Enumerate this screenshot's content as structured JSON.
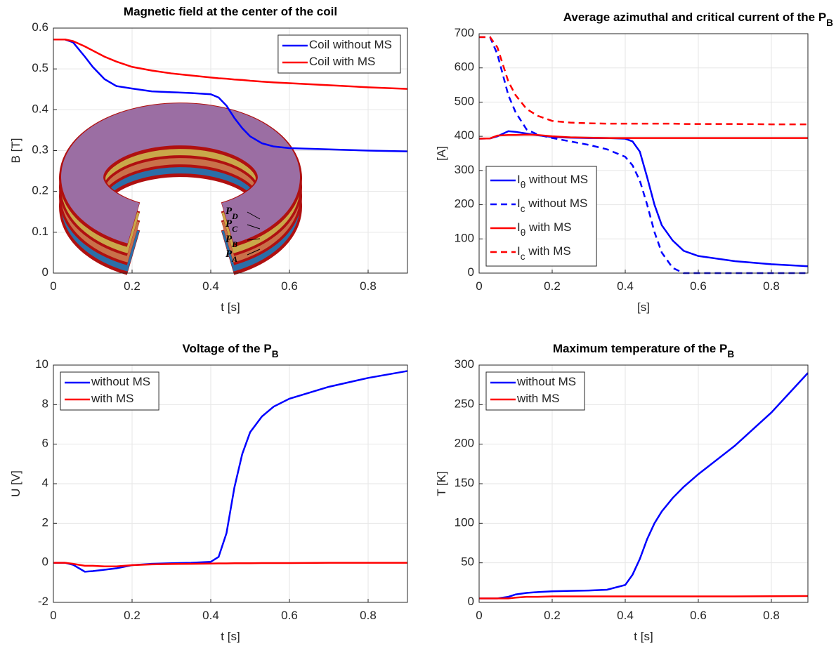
{
  "chart_data": [
    {
      "type": "line",
      "title": "Magnetic field at the center of the coil",
      "xlabel": "t [s]",
      "ylabel": "B [T]",
      "x": [
        0,
        0.03,
        0.05,
        0.08,
        0.1,
        0.13,
        0.16,
        0.2,
        0.25,
        0.3,
        0.35,
        0.4,
        0.42,
        0.44,
        0.46,
        0.48,
        0.5,
        0.53,
        0.56,
        0.6,
        0.7,
        0.8,
        0.9
      ],
      "series": [
        {
          "name": "Coil without MS",
          "color": "#0000ff",
          "linestyle": "solid",
          "values": [
            0.572,
            0.572,
            0.565,
            0.53,
            0.505,
            0.475,
            0.458,
            0.452,
            0.445,
            0.443,
            0.441,
            0.438,
            0.43,
            0.41,
            0.38,
            0.355,
            0.335,
            0.318,
            0.31,
            0.306,
            0.303,
            0.3,
            0.298
          ]
        },
        {
          "name": "Coil with MS",
          "color": "#ff0000",
          "linestyle": "solid",
          "values": [
            0.572,
            0.572,
            0.568,
            0.555,
            0.545,
            0.53,
            0.518,
            0.505,
            0.496,
            0.489,
            0.484,
            0.479,
            0.477,
            0.476,
            0.474,
            0.473,
            0.471,
            0.469,
            0.467,
            0.465,
            0.46,
            0.455,
            0.451
          ]
        }
      ],
      "xlim": [
        0,
        0.9
      ],
      "xticks": [
        0,
        0.2,
        0.4,
        0.6,
        0.8
      ],
      "ylim": [
        0,
        0.6
      ],
      "yticks": [
        0,
        0.1,
        0.2,
        0.3,
        0.4,
        0.5,
        0.6
      ],
      "grid": true,
      "legend": "upper right",
      "inset_labels": [
        "P_D",
        "P_C",
        "P_B",
        "P_A"
      ]
    },
    {
      "type": "line",
      "title": "Average azimuthal and critical current of the P_B",
      "xlabel": "[s]",
      "ylabel": "[A]",
      "x": [
        0,
        0.03,
        0.05,
        0.08,
        0.1,
        0.13,
        0.16,
        0.2,
        0.25,
        0.3,
        0.35,
        0.4,
        0.42,
        0.44,
        0.46,
        0.48,
        0.5,
        0.53,
        0.56,
        0.6,
        0.7,
        0.8,
        0.9
      ],
      "series": [
        {
          "name": "I_θ without MS",
          "color": "#0000ff",
          "linestyle": "solid",
          "values": [
            393,
            394,
            400,
            415,
            413,
            408,
            403,
            398,
            396,
            395,
            395,
            393,
            385,
            355,
            280,
            200,
            140,
            95,
            65,
            50,
            35,
            26,
            20
          ]
        },
        {
          "name": "I_c without MS",
          "color": "#0000ff",
          "linestyle": "dashed",
          "values": [
            690,
            690,
            640,
            520,
            470,
            420,
            405,
            395,
            385,
            375,
            362,
            340,
            315,
            270,
            200,
            120,
            60,
            15,
            0,
            0,
            0,
            0,
            0
          ]
        },
        {
          "name": "I_θ with MS",
          "color": "#ff0000",
          "linestyle": "solid",
          "values": [
            393,
            394,
            402,
            404,
            404,
            405,
            404,
            400,
            397,
            396,
            395,
            395,
            395,
            395,
            395,
            395,
            395,
            395,
            395,
            395,
            395,
            395,
            395
          ]
        },
        {
          "name": "I_c with MS",
          "color": "#ff0000",
          "linestyle": "dashed",
          "values": [
            690,
            690,
            660,
            560,
            520,
            480,
            460,
            445,
            440,
            438,
            437,
            437,
            437,
            437,
            437,
            437,
            437,
            437,
            436,
            436,
            436,
            435,
            435
          ]
        }
      ],
      "xlim": [
        0,
        0.9
      ],
      "xticks": [
        0,
        0.2,
        0.4,
        0.6,
        0.8
      ],
      "ylim": [
        0,
        700
      ],
      "yticks": [
        0,
        100,
        200,
        300,
        400,
        500,
        600,
        700
      ],
      "grid": true,
      "legend": "lower left"
    },
    {
      "type": "line",
      "title": "Voltage of the P_B",
      "xlabel": "t [s]",
      "ylabel": "U [V]",
      "x": [
        0,
        0.03,
        0.05,
        0.08,
        0.1,
        0.13,
        0.16,
        0.2,
        0.25,
        0.3,
        0.35,
        0.4,
        0.42,
        0.44,
        0.46,
        0.48,
        0.5,
        0.53,
        0.56,
        0.6,
        0.7,
        0.8,
        0.9
      ],
      "series": [
        {
          "name": "without MS",
          "color": "#0000ff",
          "linestyle": "solid",
          "values": [
            0,
            0,
            -0.1,
            -0.45,
            -0.42,
            -0.35,
            -0.28,
            -0.12,
            -0.05,
            -0.02,
            0,
            0.05,
            0.3,
            1.5,
            3.8,
            5.5,
            6.6,
            7.4,
            7.9,
            8.3,
            8.9,
            9.35,
            9.7
          ]
        },
        {
          "name": "with MS",
          "color": "#ff0000",
          "linestyle": "solid",
          "values": [
            0,
            0,
            -0.05,
            -0.15,
            -0.15,
            -0.18,
            -0.18,
            -0.12,
            -0.08,
            -0.06,
            -0.05,
            -0.04,
            -0.03,
            -0.03,
            -0.02,
            -0.02,
            -0.02,
            -0.01,
            -0.01,
            -0.01,
            0,
            0,
            0
          ]
        }
      ],
      "xlim": [
        0,
        0.9
      ],
      "xticks": [
        0,
        0.2,
        0.4,
        0.6,
        0.8
      ],
      "ylim": [
        -2,
        10
      ],
      "yticks": [
        -2,
        0,
        2,
        4,
        6,
        8,
        10
      ],
      "grid": true,
      "legend": "upper left"
    },
    {
      "type": "line",
      "title": "Maximum temperature of the P_B",
      "xlabel": "t [s]",
      "ylabel": "T [K]",
      "x": [
        0,
        0.03,
        0.05,
        0.08,
        0.1,
        0.13,
        0.16,
        0.2,
        0.25,
        0.3,
        0.35,
        0.4,
        0.42,
        0.44,
        0.46,
        0.48,
        0.5,
        0.53,
        0.56,
        0.6,
        0.7,
        0.8,
        0.9
      ],
      "series": [
        {
          "name": "without MS",
          "color": "#0000ff",
          "linestyle": "solid",
          "values": [
            5,
            5,
            5,
            7,
            10,
            12,
            13,
            14,
            14.5,
            15,
            16,
            22,
            35,
            55,
            80,
            100,
            115,
            132,
            146,
            162,
            198,
            240,
            290
          ]
        },
        {
          "name": "with MS",
          "color": "#ff0000",
          "linestyle": "solid",
          "values": [
            5,
            5,
            5,
            5,
            6,
            7,
            7,
            7.5,
            7.5,
            7.5,
            7.5,
            7.5,
            7.5,
            7.5,
            7.5,
            7.5,
            7.5,
            7.5,
            7.5,
            7.5,
            7.6,
            7.8,
            8
          ]
        }
      ],
      "xlim": [
        0,
        0.9
      ],
      "xticks": [
        0,
        0.2,
        0.4,
        0.6,
        0.8
      ],
      "ylim": [
        0,
        300
      ],
      "yticks": [
        0,
        50,
        100,
        150,
        200,
        250,
        300
      ],
      "grid": true,
      "legend": "upper left"
    }
  ]
}
